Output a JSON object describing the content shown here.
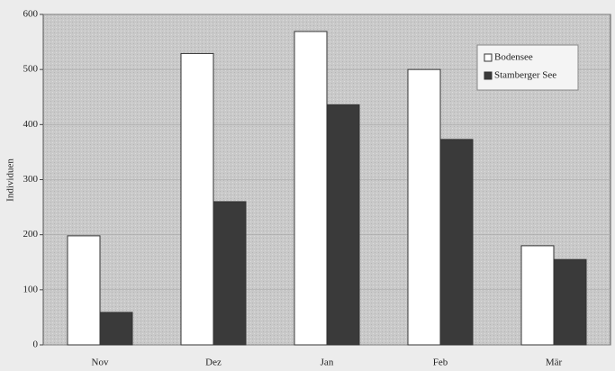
{
  "chart_data": {
    "type": "bar",
    "y_label": "Individuen",
    "categories": [
      "Nov",
      "Dez",
      "Jan",
      "Feb",
      "Mär"
    ],
    "series": [
      {
        "name": "Bodensee",
        "color": "#ffffff",
        "values": [
          198,
          529,
          569,
          500,
          180
        ]
      },
      {
        "name": "Stamberger See",
        "color": "#3a3a3a",
        "values": [
          59,
          260,
          436,
          373,
          155
        ]
      }
    ],
    "ylim": [
      0,
      600
    ],
    "yticks": [
      0,
      100,
      200,
      300,
      400,
      500,
      600
    ],
    "grid": true,
    "legend": "top-right"
  }
}
